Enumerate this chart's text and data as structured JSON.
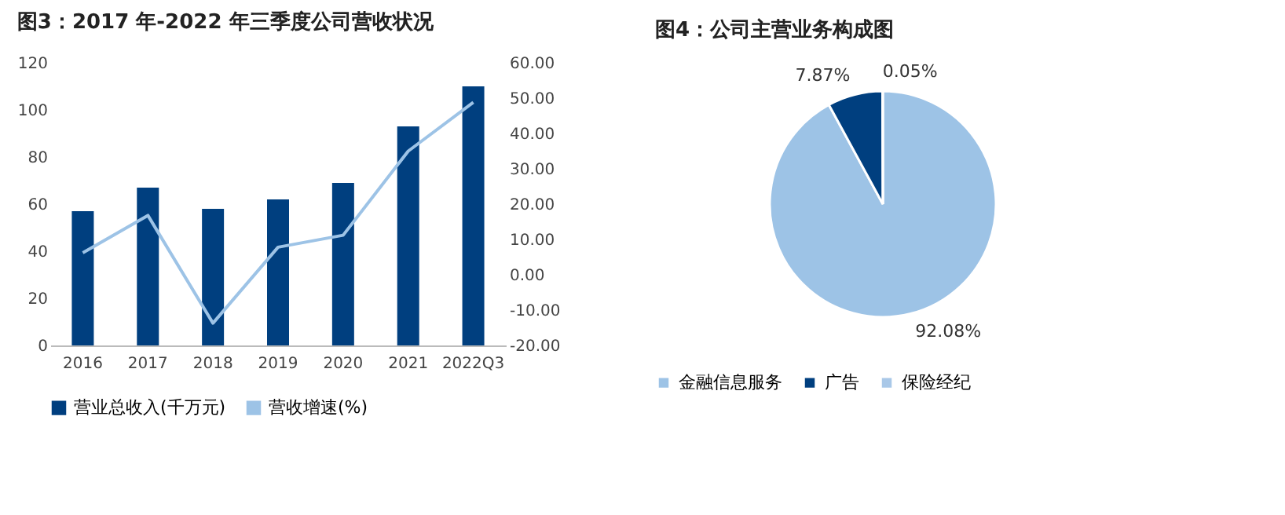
{
  "chart_data": [
    {
      "type": "bar",
      "title": "图3：2017 年-2022 年三季度公司营收状况",
      "categories": [
        "2016",
        "2017",
        "2018",
        "2019",
        "2020",
        "2021",
        "2022Q3"
      ],
      "series": [
        {
          "name": "营业总收入(千万元)",
          "color": "#003f7f",
          "values": [
            57,
            67,
            58,
            62,
            69,
            93,
            110
          ]
        },
        {
          "name": "营收增速(%)",
          "type": "line",
          "axis": "y2",
          "color": "#9dc3e6",
          "values": [
            6.2,
            16.8,
            -13.7,
            7.8,
            11.2,
            35,
            48.8
          ]
        }
      ],
      "ylim": [
        0,
        120
      ],
      "yticks": [
        0,
        20,
        40,
        60,
        80,
        100,
        120
      ],
      "y2lim": [
        -20,
        60
      ],
      "y2ticks": [
        {
          "value": -20,
          "label": "-20.00"
        },
        {
          "value": -10,
          "label": "-10.00"
        },
        {
          "value": 0,
          "label": "0.00"
        },
        {
          "value": 10,
          "label": "10.00"
        },
        {
          "value": 20,
          "label": "20.00"
        },
        {
          "value": 30,
          "label": "30.00"
        },
        {
          "value": 40,
          "label": "40.00"
        },
        {
          "value": 50,
          "label": "50.00"
        },
        {
          "value": 60,
          "label": "60.00"
        }
      ],
      "legend": "bottom",
      "grid": false
    },
    {
      "type": "pie",
      "title": "图4：公司主营业务构成图",
      "categories": [
        "金融信息服务",
        "广告",
        "保险经纪"
      ],
      "values": [
        92.08,
        7.87,
        0.05
      ],
      "colors": [
        "#9dc3e6",
        "#003f7f",
        "#a9c8e8"
      ],
      "value_labels": [
        "92.08%",
        "7.87%",
        "0.05%"
      ],
      "legend": "bottom"
    }
  ]
}
